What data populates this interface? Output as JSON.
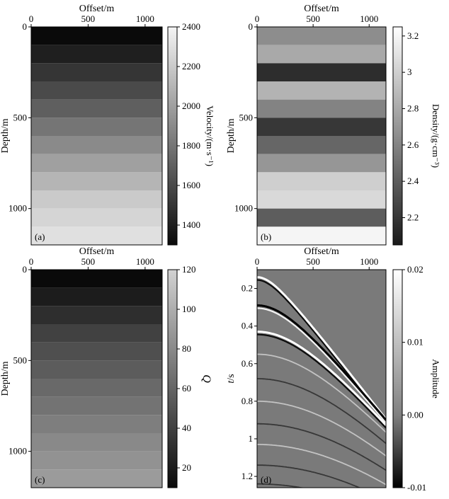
{
  "chart_data": [
    {
      "panel_label": "(a)",
      "type": "heatmap",
      "xlabel": "Offset/m",
      "ylabel": "Depth/m",
      "xticks": [
        0,
        500,
        1000
      ],
      "yticks": [
        0,
        500,
        1000
      ],
      "xlim": [
        0,
        1150
      ],
      "ylim": [
        1200,
        0
      ],
      "layer_depths": [
        0,
        100,
        200,
        300,
        400,
        500,
        600,
        700,
        800,
        900,
        1000,
        1100,
        1200
      ],
      "layer_values": [
        1300,
        1400,
        1500,
        1600,
        1700,
        1800,
        1900,
        2000,
        2100,
        2200,
        2250,
        2300
      ],
      "colorbar": {
        "label": "Velocity/(m·s⁻¹)",
        "min": 1300,
        "max": 2400,
        "ticks": [
          1400,
          1600,
          1800,
          2000,
          2200,
          2400
        ]
      }
    },
    {
      "panel_label": "(b)",
      "type": "heatmap",
      "xlabel": "Offset/m",
      "ylabel": "Depth/m",
      "xticks": [
        0,
        500,
        1000
      ],
      "yticks": [
        0,
        500,
        1000
      ],
      "xlim": [
        0,
        1150
      ],
      "ylim": [
        1200,
        0
      ],
      "layer_depths": [
        0,
        100,
        200,
        300,
        400,
        500,
        600,
        700,
        800,
        900,
        1000,
        1100,
        1200
      ],
      "layer_values": [
        2.65,
        2.8,
        2.15,
        2.85,
        2.6,
        2.2,
        2.45,
        2.7,
        3.0,
        3.05,
        2.4,
        3.2
      ],
      "colorbar": {
        "label": "Density/(g·cm⁻³)",
        "min": 2.05,
        "max": 3.25,
        "ticks": [
          2.2,
          2.4,
          2.6,
          2.8,
          3.0,
          3.2
        ]
      }
    },
    {
      "panel_label": "(c)",
      "type": "heatmap",
      "xlabel": "Offset/m",
      "ylabel": "Depth/m",
      "xticks": [
        0,
        500,
        1000
      ],
      "yticks": [
        0,
        500,
        1000
      ],
      "xlim": [
        0,
        1150
      ],
      "ylim": [
        1200,
        0
      ],
      "layer_depths": [
        0,
        100,
        200,
        300,
        400,
        500,
        600,
        700,
        800,
        900,
        1000,
        1100,
        1200
      ],
      "layer_values": [
        10,
        20,
        30,
        40,
        48,
        55,
        62,
        68,
        74,
        80,
        85,
        90
      ],
      "colorbar": {
        "label": "Q",
        "min": 10,
        "max": 120,
        "ticks": [
          20,
          40,
          60,
          80,
          100,
          120
        ]
      }
    },
    {
      "panel_label": "(d)",
      "type": "heatmap",
      "xlabel": "Offset/m",
      "ylabel": "t/s",
      "xticks": [
        0,
        500,
        1000
      ],
      "yticks": [
        0.2,
        0.4,
        0.6,
        0.8,
        1.0,
        1.2
      ],
      "xlim": [
        0,
        1150
      ],
      "ylim": [
        1.26,
        0.1
      ],
      "events": [
        {
          "t0": 0.14,
          "velocity": 1300,
          "amplitude": 0.02
        },
        {
          "t0": 0.29,
          "velocity": 1350,
          "amplitude": -0.01
        },
        {
          "t0": 0.43,
          "velocity": 1400,
          "amplitude": 0.016
        },
        {
          "t0": 0.55,
          "velocity": 1450,
          "amplitude": 0.003
        },
        {
          "t0": 0.68,
          "velocity": 1500,
          "amplitude": -0.004
        },
        {
          "t0": 0.8,
          "velocity": 1550,
          "amplitude": 0.004
        },
        {
          "t0": 0.92,
          "velocity": 1600,
          "amplitude": -0.004
        },
        {
          "t0": 1.03,
          "velocity": 1650,
          "amplitude": 0.004
        },
        {
          "t0": 1.14,
          "velocity": 1700,
          "amplitude": -0.003
        },
        {
          "t0": 1.24,
          "velocity": 1750,
          "amplitude": -0.006
        }
      ],
      "colorbar": {
        "label": "Amplitude",
        "min": -0.01,
        "max": 0.02,
        "ticks": [
          -0.01,
          0.0,
          0.01,
          0.02
        ],
        "tick_labels": [
          "-0.01",
          "0.00",
          "0.01",
          "0.02"
        ]
      }
    }
  ]
}
